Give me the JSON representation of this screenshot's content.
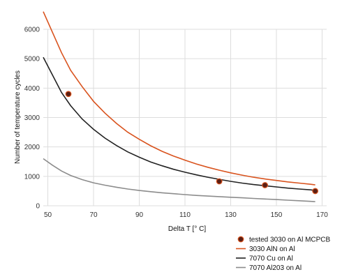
{
  "chart_data": {
    "type": "line",
    "title": "",
    "xlabel": "Delta T [° C]",
    "ylabel": "Number of temperature cycles",
    "xlim": [
      48,
      172
    ],
    "ylim": [
      0,
      6000
    ],
    "xticks": [
      50,
      70,
      90,
      110,
      130,
      150,
      170
    ],
    "yticks": [
      0,
      1000,
      2000,
      3000,
      4000,
      5000,
      6000
    ],
    "grid": true,
    "legend_position": "bottom-right",
    "series": [
      {
        "name": "tested 3030 on Al MCPCB",
        "kind": "scatter",
        "color": "#5a1f14",
        "edge_color": "#d9531e",
        "points": [
          [
            59,
            3800
          ],
          [
            125,
            830
          ],
          [
            145,
            700
          ],
          [
            167,
            500
          ]
        ]
      },
      {
        "name": "3030 AlN on Al",
        "kind": "line",
        "color": "#d9531e",
        "x": [
          48,
          52,
          56,
          60,
          65,
          70,
          75,
          80,
          85,
          90,
          95,
          100,
          105,
          110,
          115,
          120,
          125,
          130,
          135,
          140,
          145,
          150,
          155,
          160,
          165,
          167
        ],
        "y": [
          6600,
          5900,
          5200,
          4600,
          4050,
          3550,
          3150,
          2800,
          2500,
          2260,
          2040,
          1850,
          1690,
          1550,
          1420,
          1310,
          1210,
          1120,
          1040,
          970,
          910,
          860,
          810,
          770,
          730,
          710
        ]
      },
      {
        "name": "7070 Cu on Al",
        "kind": "line",
        "color": "#222222",
        "x": [
          48,
          52,
          56,
          60,
          65,
          70,
          75,
          80,
          85,
          90,
          95,
          100,
          105,
          110,
          115,
          120,
          125,
          130,
          135,
          140,
          145,
          150,
          155,
          160,
          165,
          167
        ],
        "y": [
          5050,
          4450,
          3850,
          3400,
          2950,
          2600,
          2300,
          2050,
          1830,
          1650,
          1490,
          1360,
          1240,
          1140,
          1050,
          970,
          900,
          830,
          770,
          720,
          680,
          640,
          600,
          570,
          540,
          520
        ]
      },
      {
        "name": "7070 Al203 on Al",
        "kind": "line",
        "color": "#8c8c8c",
        "x": [
          48,
          52,
          56,
          60,
          65,
          70,
          75,
          80,
          85,
          90,
          95,
          100,
          105,
          110,
          115,
          120,
          125,
          130,
          135,
          140,
          145,
          150,
          155,
          160,
          165,
          167
        ],
        "y": [
          1600,
          1380,
          1180,
          1030,
          890,
          780,
          700,
          630,
          570,
          520,
          480,
          440,
          410,
          380,
          350,
          330,
          310,
          290,
          270,
          250,
          230,
          210,
          190,
          170,
          150,
          140
        ]
      }
    ]
  }
}
